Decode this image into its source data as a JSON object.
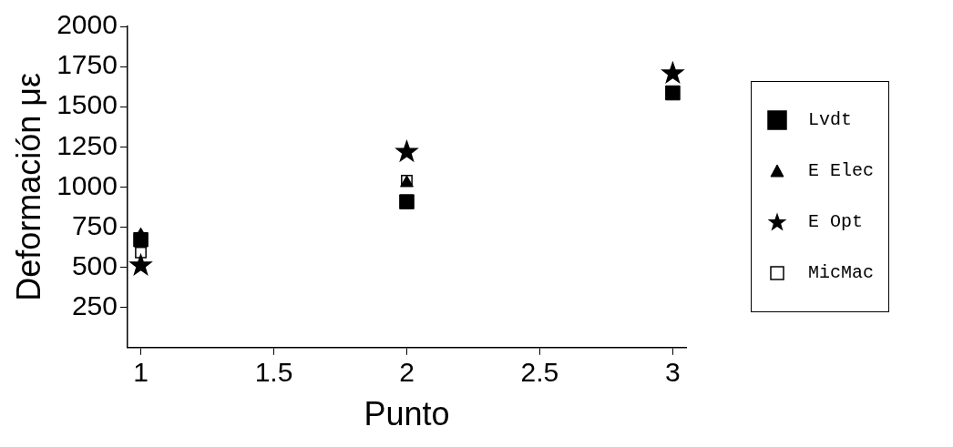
{
  "chart_data": {
    "type": "scatter",
    "xlabel": "Punto",
    "ylabel": "Deformación με",
    "x": [
      1,
      2,
      3
    ],
    "xlim": [
      0.95,
      3.05
    ],
    "xticks": [
      1,
      1.5,
      2,
      2.5,
      3
    ],
    "ylim": [
      0,
      2000
    ],
    "yticks": [
      250,
      500,
      750,
      1000,
      1250,
      1500,
      1750,
      2000
    ],
    "grid": false,
    "legend": "right",
    "series": [
      {
        "name": "Lvdt",
        "color": "#000000",
        "marker": "square",
        "values": [
          672,
          908,
          1586
        ]
      },
      {
        "name": "E Elec",
        "color": "#000000",
        "marker": "triangle",
        "values": [
          700,
          1025,
          null
        ]
      },
      {
        "name": "E Opt",
        "color": "#000000",
        "marker": "star",
        "values": [
          511,
          1218,
          1707
        ]
      },
      {
        "name": "MicMac",
        "color": "#ffffff",
        "marker": "square",
        "values": [
          592,
          1040,
          null
        ]
      }
    ]
  }
}
